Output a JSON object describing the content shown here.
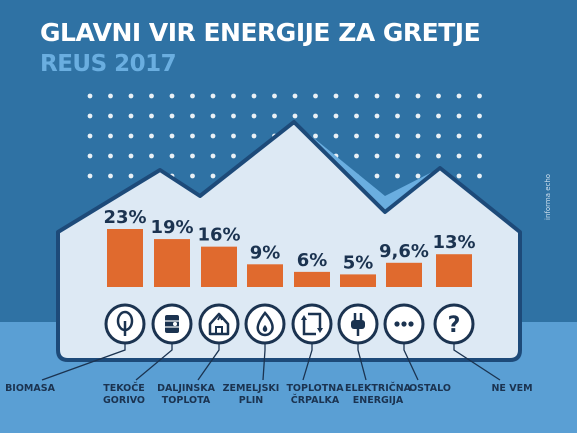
{
  "header": {
    "title": "GLAVNI VIR ENERGIJE ZA GRETJE",
    "subtitle": "REUS 2017",
    "credit": "informa echo"
  },
  "colors": {
    "background_top": "#2f72a4",
    "background_bottom": "#5a9fd4",
    "house_fill": "#dde9f4",
    "house_outline": "#1d4a79",
    "roof_accent": "#6aaee0",
    "bar": "#e06a2e",
    "subtitle": "#6aaee0",
    "icon_circle": "#ffffff",
    "icon_outline": "#1b3350"
  },
  "chart_data": {
    "type": "bar",
    "title": "GLAVNI VIR ENERGIJE ZA GRETJE",
    "subtitle": "REUS 2017",
    "unit": "%",
    "categories": [
      "BIOMASA",
      "TEKOČE\nGORIVO",
      "DALJINSKA\nTOPLOTA",
      "ZEMELJSKI\nPLIN",
      "TOPLOTNA\nČRPALKA",
      "ELEKTRIČNA\nENERGIJA",
      "OSTALO",
      "NE VEM"
    ],
    "values": [
      23,
      19,
      16,
      9,
      6,
      5,
      9.6,
      13
    ],
    "value_labels": [
      "23%",
      "19%",
      "16%",
      "9%",
      "6%",
      "5%",
      "9,6%",
      "13%"
    ],
    "icons": [
      "tree-icon",
      "oil-barrel-icon",
      "district-heating-icon",
      "flame-icon",
      "heat-pump-icon",
      "plug-icon",
      "more-dots-icon",
      "question-icon"
    ],
    "ylim": [
      0,
      23
    ],
    "grid": false,
    "legend": "none"
  }
}
